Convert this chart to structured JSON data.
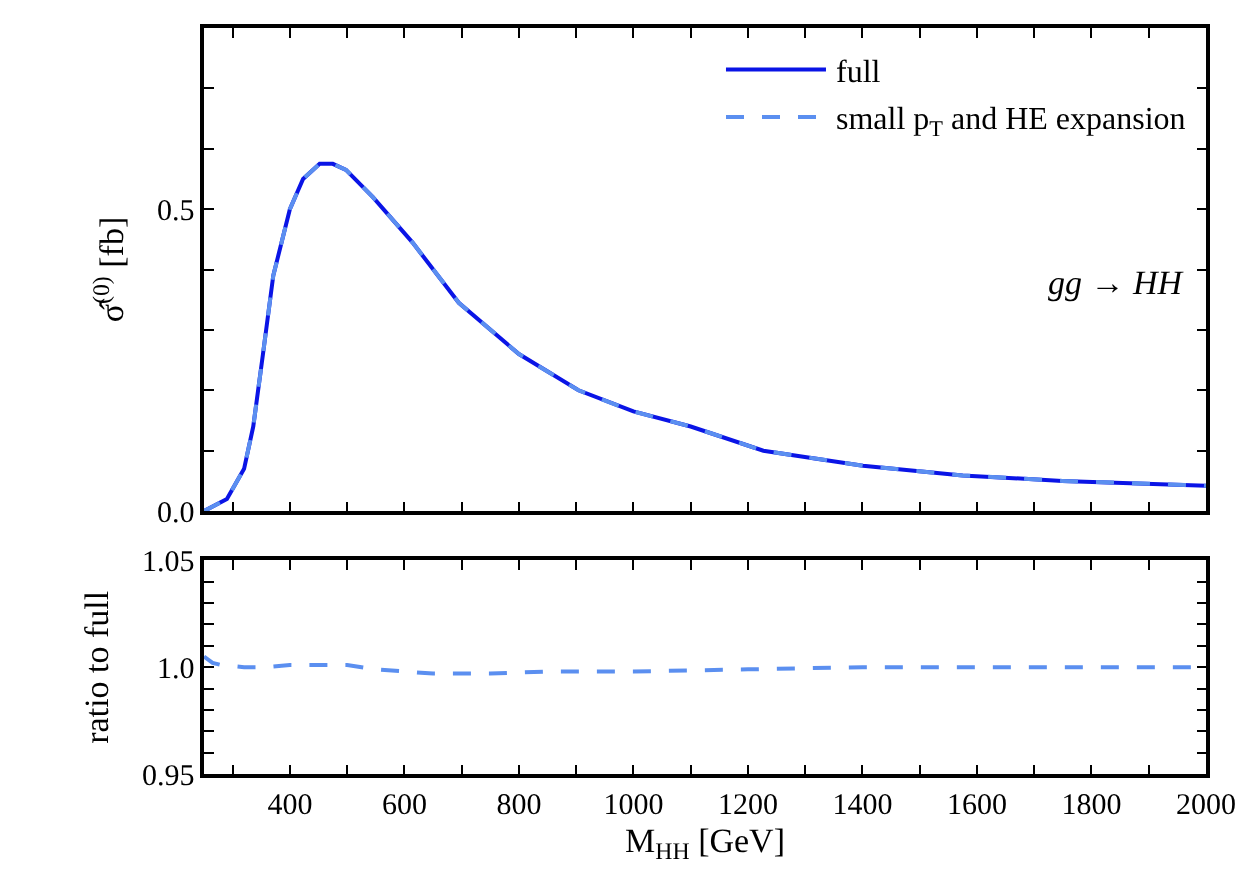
{
  "chart_data": [
    {
      "type": "line",
      "ylabel": "σ̂$^{(0)}$ [fb]",
      "annotations": [
        "gg → HH"
      ],
      "xlim": [
        250,
        2000
      ],
      "ylim": [
        0,
        0.8
      ],
      "xticks": [
        {
          "value": 300,
          "label": null
        },
        {
          "value": 400,
          "label": null
        },
        {
          "value": 500,
          "label": null
        },
        {
          "value": 600,
          "label": null
        },
        {
          "value": 700,
          "label": null
        },
        {
          "value": 800,
          "label": null
        },
        {
          "value": 900,
          "label": null
        },
        {
          "value": 1000,
          "label": null
        },
        {
          "value": 1100,
          "label": null
        },
        {
          "value": 1200,
          "label": null
        },
        {
          "value": 1300,
          "label": null
        },
        {
          "value": 1400,
          "label": null
        },
        {
          "value": 1500,
          "label": null
        },
        {
          "value": 1600,
          "label": null
        },
        {
          "value": 1700,
          "label": null
        },
        {
          "value": 1800,
          "label": null
        },
        {
          "value": 1900,
          "label": null
        }
      ],
      "yticks": [
        {
          "value": 0,
          "label": "0.0"
        },
        {
          "value": 0.1,
          "label": null
        },
        {
          "value": 0.2,
          "label": null
        },
        {
          "value": 0.3,
          "label": null
        },
        {
          "value": 0.4,
          "label": null
        },
        {
          "value": 0.5,
          "label": "0.5"
        },
        {
          "value": 0.6,
          "label": null
        },
        {
          "value": 0.7,
          "label": null
        }
      ],
      "tick_labels": "y",
      "legend": "top right",
      "marker": "none",
      "x": [
        250,
        290,
        320,
        336,
        353,
        371,
        400,
        423,
        452,
        475,
        498,
        545,
        614,
        695,
        800,
        904,
        1000,
        1100,
        1227,
        1401,
        1575,
        1749,
        2000
      ],
      "series": [
        {
          "name": "full",
          "color": "#0a14e6",
          "line_style": "solid",
          "values": [
            0,
            0.02,
            0.07,
            0.14,
            0.26,
            0.39,
            0.5,
            0.55,
            0.575,
            0.575,
            0.565,
            0.52,
            0.445,
            0.345,
            0.26,
            0.2,
            0.165,
            0.14,
            0.1,
            0.075,
            0.059,
            0.05,
            0.042
          ]
        },
        {
          "name": "small p$_{T}$ and HE expansion",
          "color": "#5b8ff0",
          "line_style": "dashed",
          "values": [
            0,
            0.02,
            0.07,
            0.14,
            0.26,
            0.39,
            0.5,
            0.55,
            0.575,
            0.575,
            0.565,
            0.52,
            0.445,
            0.345,
            0.26,
            0.2,
            0.165,
            0.14,
            0.1,
            0.075,
            0.059,
            0.05,
            0.042
          ]
        }
      ]
    },
    {
      "type": "line",
      "xlabel": "M$_{HH}$ [GeV]",
      "ylabel": "ratio to full",
      "xlim": [
        250,
        2000
      ],
      "ylim": [
        0.95,
        1.05
      ],
      "xticks": [
        {
          "value": 300,
          "label": null
        },
        400,
        {
          "value": 500,
          "label": null
        },
        600,
        {
          "value": 700,
          "label": null
        },
        800,
        {
          "value": 900,
          "label": null
        },
        1000,
        {
          "value": 1100,
          "label": null
        },
        1200,
        {
          "value": 1300,
          "label": null
        },
        1400,
        {
          "value": 1500,
          "label": null
        },
        1600,
        {
          "value": 1700,
          "label": null
        },
        1800,
        {
          "value": 1900,
          "label": null
        },
        2000
      ],
      "yticks": [
        0.95,
        {
          "value": 0.96,
          "label": null
        },
        {
          "value": 0.97,
          "label": null
        },
        {
          "value": 0.98,
          "label": null
        },
        {
          "value": 0.99,
          "label": null
        },
        {
          "value": 1.0,
          "label": "1.0"
        },
        {
          "value": 1.01,
          "label": null
        },
        {
          "value": 1.02,
          "label": null
        },
        {
          "value": 1.03,
          "label": null
        },
        {
          "value": 1.04,
          "label": null
        },
        1.05
      ],
      "marker": "none",
      "x": [
        250,
        265,
        280,
        320,
        360,
        400,
        450,
        500,
        550,
        650,
        750,
        850,
        1000,
        1200,
        1400,
        1700,
        2000
      ],
      "series": [
        {
          "color": "#5b8ff0",
          "line_style": "dashed",
          "values": [
            1.005,
            1.002,
            1.001,
            1.0,
            1.0,
            1.001,
            1.001,
            1.001,
            0.999,
            0.997,
            0.997,
            0.998,
            0.998,
            0.999,
            1.0,
            1.0,
            1.0
          ]
        }
      ]
    }
  ]
}
